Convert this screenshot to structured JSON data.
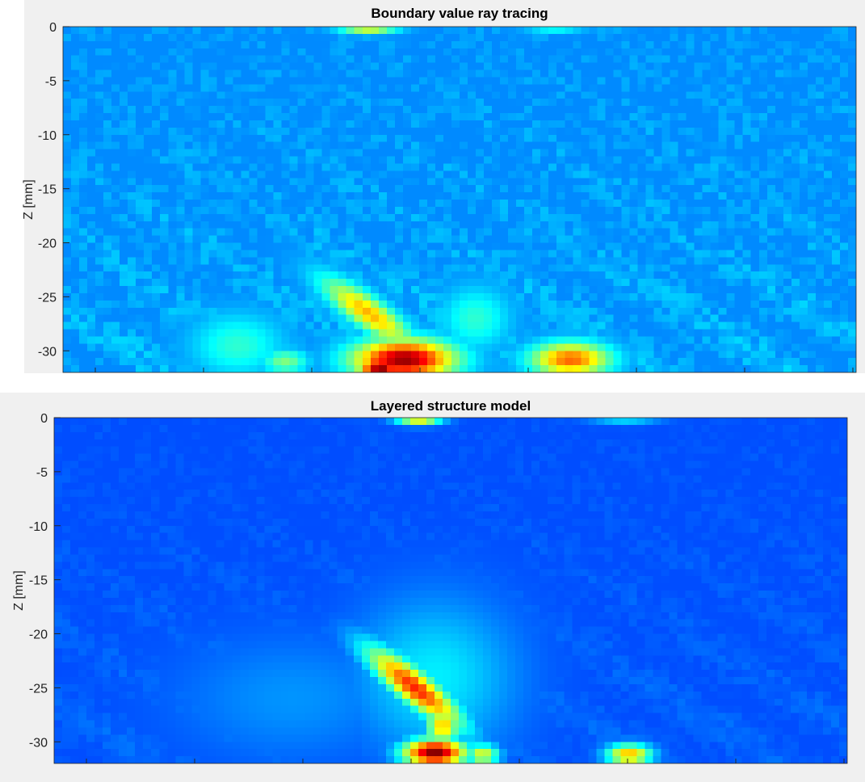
{
  "chart_data": [
    {
      "type": "heatmap",
      "title": "Boundary value ray tracing",
      "ylabel": "Z [mm]",
      "xlabel": "",
      "ylim": [
        -32,
        0
      ],
      "yticks": [
        0,
        -5,
        -10,
        -15,
        -20,
        -25,
        -30
      ],
      "colormap": "jet",
      "background_level": 0.26,
      "hotspots": [
        {
          "x": 0.385,
          "z": -0.2,
          "sx": 0.025,
          "sz": 0.35,
          "v": 0.58
        },
        {
          "x": 0.62,
          "z": -0.2,
          "sx": 0.025,
          "sz": 0.3,
          "v": 0.38
        },
        {
          "x": 0.385,
          "z": -26.5,
          "sx": 0.022,
          "sz": 2.2,
          "v": 0.7,
          "skew": -0.03
        },
        {
          "x": 0.43,
          "z": -30.8,
          "sx": 0.045,
          "sz": 1.3,
          "v": 0.98
        },
        {
          "x": 0.4,
          "z": -31.5,
          "sx": 0.02,
          "sz": 0.7,
          "v": 1.0
        },
        {
          "x": 0.64,
          "z": -30.8,
          "sx": 0.035,
          "sz": 1.1,
          "v": 0.78
        },
        {
          "x": 0.22,
          "z": -29.5,
          "sx": 0.04,
          "sz": 2.0,
          "v": 0.42
        },
        {
          "x": 0.52,
          "z": -27.0,
          "sx": 0.03,
          "sz": 2.0,
          "v": 0.42
        },
        {
          "x": 0.28,
          "z": -31.0,
          "sx": 0.02,
          "sz": 0.8,
          "v": 0.5
        }
      ]
    },
    {
      "type": "heatmap",
      "title": "Layered structure model",
      "ylabel": "Z [mm]",
      "xlabel": "",
      "ylim": [
        -32,
        0
      ],
      "yticks": [
        0,
        -5,
        -10,
        -15,
        -20,
        -25,
        -30
      ],
      "colormap": "jet",
      "background_level": 0.2,
      "hotspots": [
        {
          "x": 0.46,
          "z": -0.2,
          "sx": 0.02,
          "sz": 0.35,
          "v": 0.62
        },
        {
          "x": 0.72,
          "z": -0.2,
          "sx": 0.03,
          "sz": 0.3,
          "v": 0.34
        },
        {
          "x": 0.455,
          "z": -25.0,
          "sx": 0.022,
          "sz": 2.6,
          "v": 0.84,
          "skew": -0.028
        },
        {
          "x": 0.49,
          "z": -28.5,
          "sx": 0.015,
          "sz": 1.3,
          "v": 0.68
        },
        {
          "x": 0.48,
          "z": -31.0,
          "sx": 0.028,
          "sz": 0.9,
          "v": 1.0
        },
        {
          "x": 0.725,
          "z": -31.2,
          "sx": 0.02,
          "sz": 0.7,
          "v": 0.7
        },
        {
          "x": 0.54,
          "z": -31.2,
          "sx": 0.015,
          "sz": 0.7,
          "v": 0.6
        },
        {
          "x": 0.48,
          "z": -24.0,
          "sx": 0.07,
          "sz": 5.0,
          "v": 0.36
        },
        {
          "x": 0.3,
          "z": -26.0,
          "sx": 0.1,
          "sz": 4.0,
          "v": 0.27
        }
      ]
    }
  ]
}
